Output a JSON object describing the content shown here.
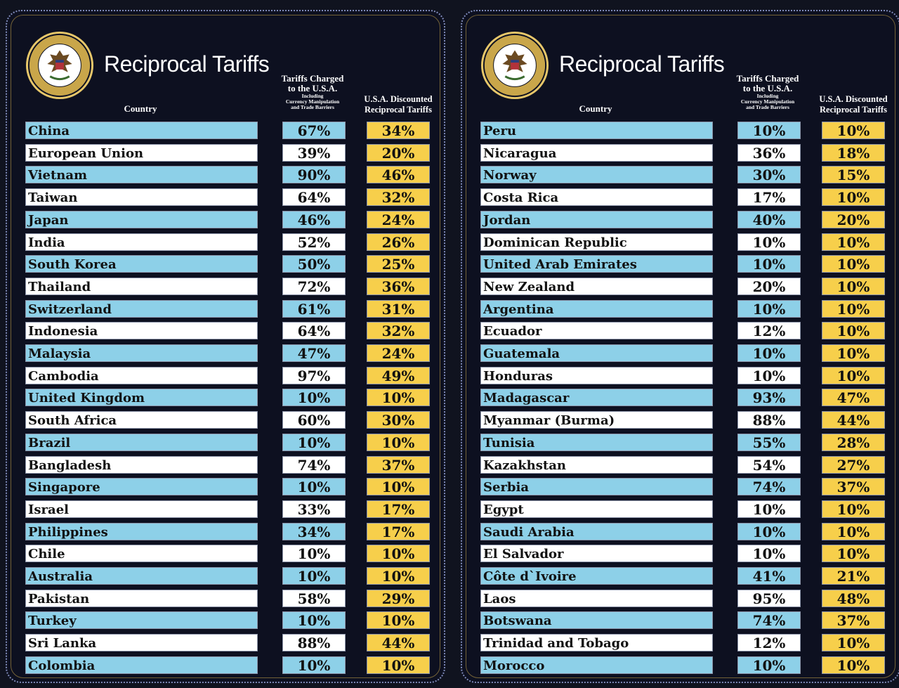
{
  "colors": {
    "background": "#0d1020",
    "blue_row": "#8dd0e8",
    "white_row": "#ffffff",
    "discount": "#f7cf4b",
    "seal_gold": "#c9a64a"
  },
  "panels": [
    {
      "title": "Reciprocal Tariffs",
      "seal_text": "SEAL OF THE PRESIDENT OF THE UNITED STATES",
      "headers": {
        "country": "Country",
        "charged_line1": "Tariffs Charged",
        "charged_line2": "to the U.S.A.",
        "charged_small1": "Including",
        "charged_small2": "Currency Manipulation",
        "charged_small3": "and Trade Barriers",
        "disc_line1": "U.S.A. Discounted",
        "disc_line2": "Reciprocal Tariffs"
      },
      "rows": [
        {
          "country": "China",
          "charged": "67%",
          "discounted": "34%"
        },
        {
          "country": "European Union",
          "charged": "39%",
          "discounted": "20%"
        },
        {
          "country": "Vietnam",
          "charged": "90%",
          "discounted": "46%"
        },
        {
          "country": "Taiwan",
          "charged": "64%",
          "discounted": "32%"
        },
        {
          "country": "Japan",
          "charged": "46%",
          "discounted": "24%"
        },
        {
          "country": "India",
          "charged": "52%",
          "discounted": "26%"
        },
        {
          "country": "South Korea",
          "charged": "50%",
          "discounted": "25%"
        },
        {
          "country": "Thailand",
          "charged": "72%",
          "discounted": "36%"
        },
        {
          "country": "Switzerland",
          "charged": "61%",
          "discounted": "31%"
        },
        {
          "country": "Indonesia",
          "charged": "64%",
          "discounted": "32%"
        },
        {
          "country": "Malaysia",
          "charged": "47%",
          "discounted": "24%"
        },
        {
          "country": "Cambodia",
          "charged": "97%",
          "discounted": "49%"
        },
        {
          "country": "United Kingdom",
          "charged": "10%",
          "discounted": "10%"
        },
        {
          "country": "South Africa",
          "charged": "60%",
          "discounted": "30%"
        },
        {
          "country": "Brazil",
          "charged": "10%",
          "discounted": "10%"
        },
        {
          "country": "Bangladesh",
          "charged": "74%",
          "discounted": "37%"
        },
        {
          "country": "Singapore",
          "charged": "10%",
          "discounted": "10%"
        },
        {
          "country": "Israel",
          "charged": "33%",
          "discounted": "17%"
        },
        {
          "country": "Philippines",
          "charged": "34%",
          "discounted": "17%"
        },
        {
          "country": "Chile",
          "charged": "10%",
          "discounted": "10%"
        },
        {
          "country": "Australia",
          "charged": "10%",
          "discounted": "10%"
        },
        {
          "country": "Pakistan",
          "charged": "58%",
          "discounted": "29%"
        },
        {
          "country": "Turkey",
          "charged": "10%",
          "discounted": "10%"
        },
        {
          "country": "Sri Lanka",
          "charged": "88%",
          "discounted": "44%"
        },
        {
          "country": "Colombia",
          "charged": "10%",
          "discounted": "10%"
        }
      ]
    },
    {
      "title": "Reciprocal Tariffs",
      "seal_text": "SEAL OF THE PRESIDENT OF THE UNITED STATES",
      "headers": {
        "country": "Country",
        "charged_line1": "Tariffs Charged",
        "charged_line2": "to the U.S.A.",
        "charged_small1": "Including",
        "charged_small2": "Currency Manipulation",
        "charged_small3": "and Trade Barriers",
        "disc_line1": "U.S.A. Discounted",
        "disc_line2": "Reciprocal Tariffs"
      },
      "rows": [
        {
          "country": "Peru",
          "charged": "10%",
          "discounted": "10%"
        },
        {
          "country": "Nicaragua",
          "charged": "36%",
          "discounted": "18%"
        },
        {
          "country": "Norway",
          "charged": "30%",
          "discounted": "15%"
        },
        {
          "country": "Costa Rica",
          "charged": "17%",
          "discounted": "10%"
        },
        {
          "country": "Jordan",
          "charged": "40%",
          "discounted": "20%"
        },
        {
          "country": "Dominican Republic",
          "charged": "10%",
          "discounted": "10%"
        },
        {
          "country": "United Arab Emirates",
          "charged": "10%",
          "discounted": "10%"
        },
        {
          "country": "New Zealand",
          "charged": "20%",
          "discounted": "10%"
        },
        {
          "country": "Argentina",
          "charged": "10%",
          "discounted": "10%"
        },
        {
          "country": "Ecuador",
          "charged": "12%",
          "discounted": "10%"
        },
        {
          "country": "Guatemala",
          "charged": "10%",
          "discounted": "10%"
        },
        {
          "country": "Honduras",
          "charged": "10%",
          "discounted": "10%"
        },
        {
          "country": "Madagascar",
          "charged": "93%",
          "discounted": "47%"
        },
        {
          "country": "Myanmar (Burma)",
          "charged": "88%",
          "discounted": "44%"
        },
        {
          "country": "Tunisia",
          "charged": "55%",
          "discounted": "28%"
        },
        {
          "country": "Kazakhstan",
          "charged": "54%",
          "discounted": "27%"
        },
        {
          "country": "Serbia",
          "charged": "74%",
          "discounted": "37%"
        },
        {
          "country": "Egypt",
          "charged": "10%",
          "discounted": "10%"
        },
        {
          "country": "Saudi Arabia",
          "charged": "10%",
          "discounted": "10%"
        },
        {
          "country": "El Salvador",
          "charged": "10%",
          "discounted": "10%"
        },
        {
          "country": "Côte d`Ivoire",
          "charged": "41%",
          "discounted": "21%"
        },
        {
          "country": "Laos",
          "charged": "95%",
          "discounted": "48%"
        },
        {
          "country": "Botswana",
          "charged": "74%",
          "discounted": "37%"
        },
        {
          "country": "Trinidad and Tobago",
          "charged": "12%",
          "discounted": "10%"
        },
        {
          "country": "Morocco",
          "charged": "10%",
          "discounted": "10%"
        }
      ]
    }
  ]
}
